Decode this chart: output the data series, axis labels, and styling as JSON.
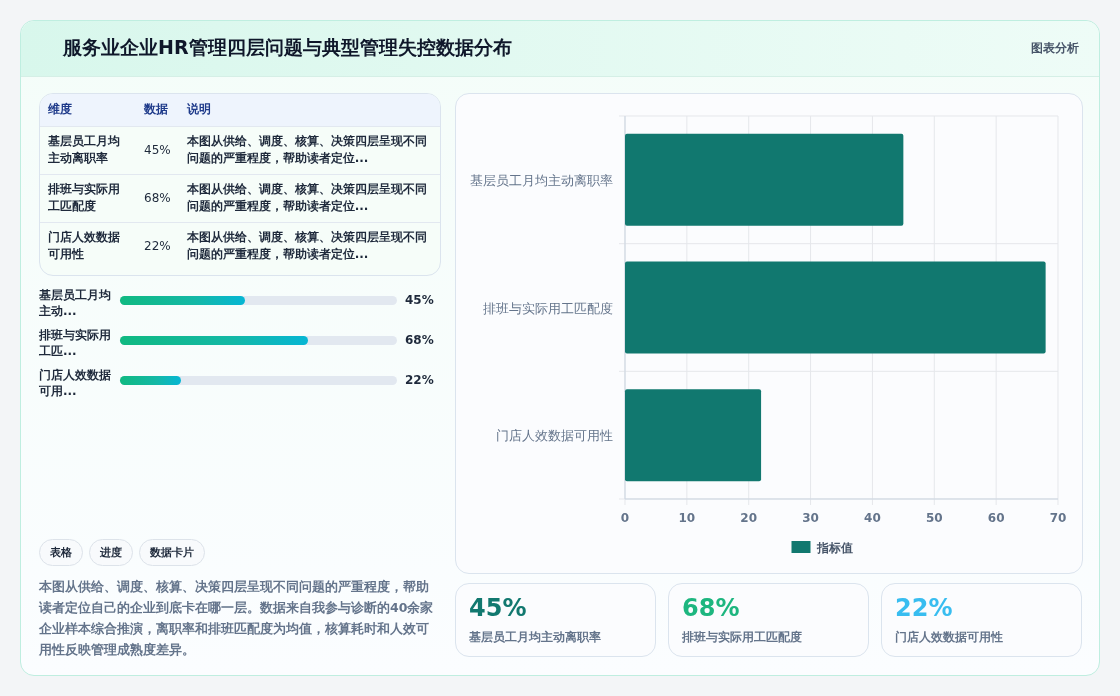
{
  "chart_data": [
    {
      "type": "other",
      "title": "服务业企业HR管理四层问题与典型管理失控数据分布",
      "annotations": [
        "图表分析"
      ]
    },
    {
      "type": "other",
      "categories": [
        "基层员工月均主动离职率",
        "排班与实际用工匹配度",
        "门店人效数据可用性"
      ],
      "value_labels": [
        "45%",
        "68%",
        "22%"
      ],
      "annotations": [
        "维度",
        "数据",
        "说明",
        "本图从供给、调度、核算、决策四层呈现不同问题的严重程度，帮助读者定位...",
        "本图从供给、调度、核算、决策四层呈现不同问题的严重程度，帮助读者定位...",
        "本图从供给、调度、核算、决策四层呈现不同问题的严重程度，帮助读者定位..."
      ]
    },
    {
      "type": "bar",
      "orientation": "horizontal",
      "categories": [
        "基层员工月均主动...",
        "排班与实际用工匹...",
        "门店人效数据可用..."
      ],
      "values": [
        45,
        68,
        22
      ],
      "value_labels": [
        "45%",
        "68%",
        "22%"
      ],
      "color": "#14b8a6",
      "xlim": [
        0,
        100
      ]
    },
    {
      "type": "other",
      "annotations": [
        "表格",
        "进度",
        "数据卡片",
        "本图从供给、调度、核算、决策四层呈现不同问题的严重程度，帮助读者定位自己的企业到底卡在哪一层。数据来自我参与诊断的40余家企业样本综合推演，离职率和排班匹配度为均值，核算耗时和人效可用性反映管理成熟度差异。"
      ]
    },
    {
      "type": "bar",
      "orientation": "horizontal",
      "categories": [
        "基层员工月均主动离职率",
        "排班与实际用工匹配度",
        "门店人效数据可用性"
      ],
      "series": [
        {
          "name": "指标值",
          "color": "#11786f",
          "values": [
            45,
            68,
            22
          ]
        }
      ],
      "xlim": [
        0,
        70
      ],
      "xticks": [
        0,
        10,
        20,
        30,
        40,
        50,
        60,
        70
      ],
      "grid": true,
      "legend": "bottom"
    },
    {
      "type": "other",
      "categories": [
        "基层员工月均主动离职率",
        "排班与实际用工匹配度",
        "门店人效数据可用性"
      ],
      "value_labels": [
        "45%",
        "68%",
        "22%"
      ]
    }
  ]
}
